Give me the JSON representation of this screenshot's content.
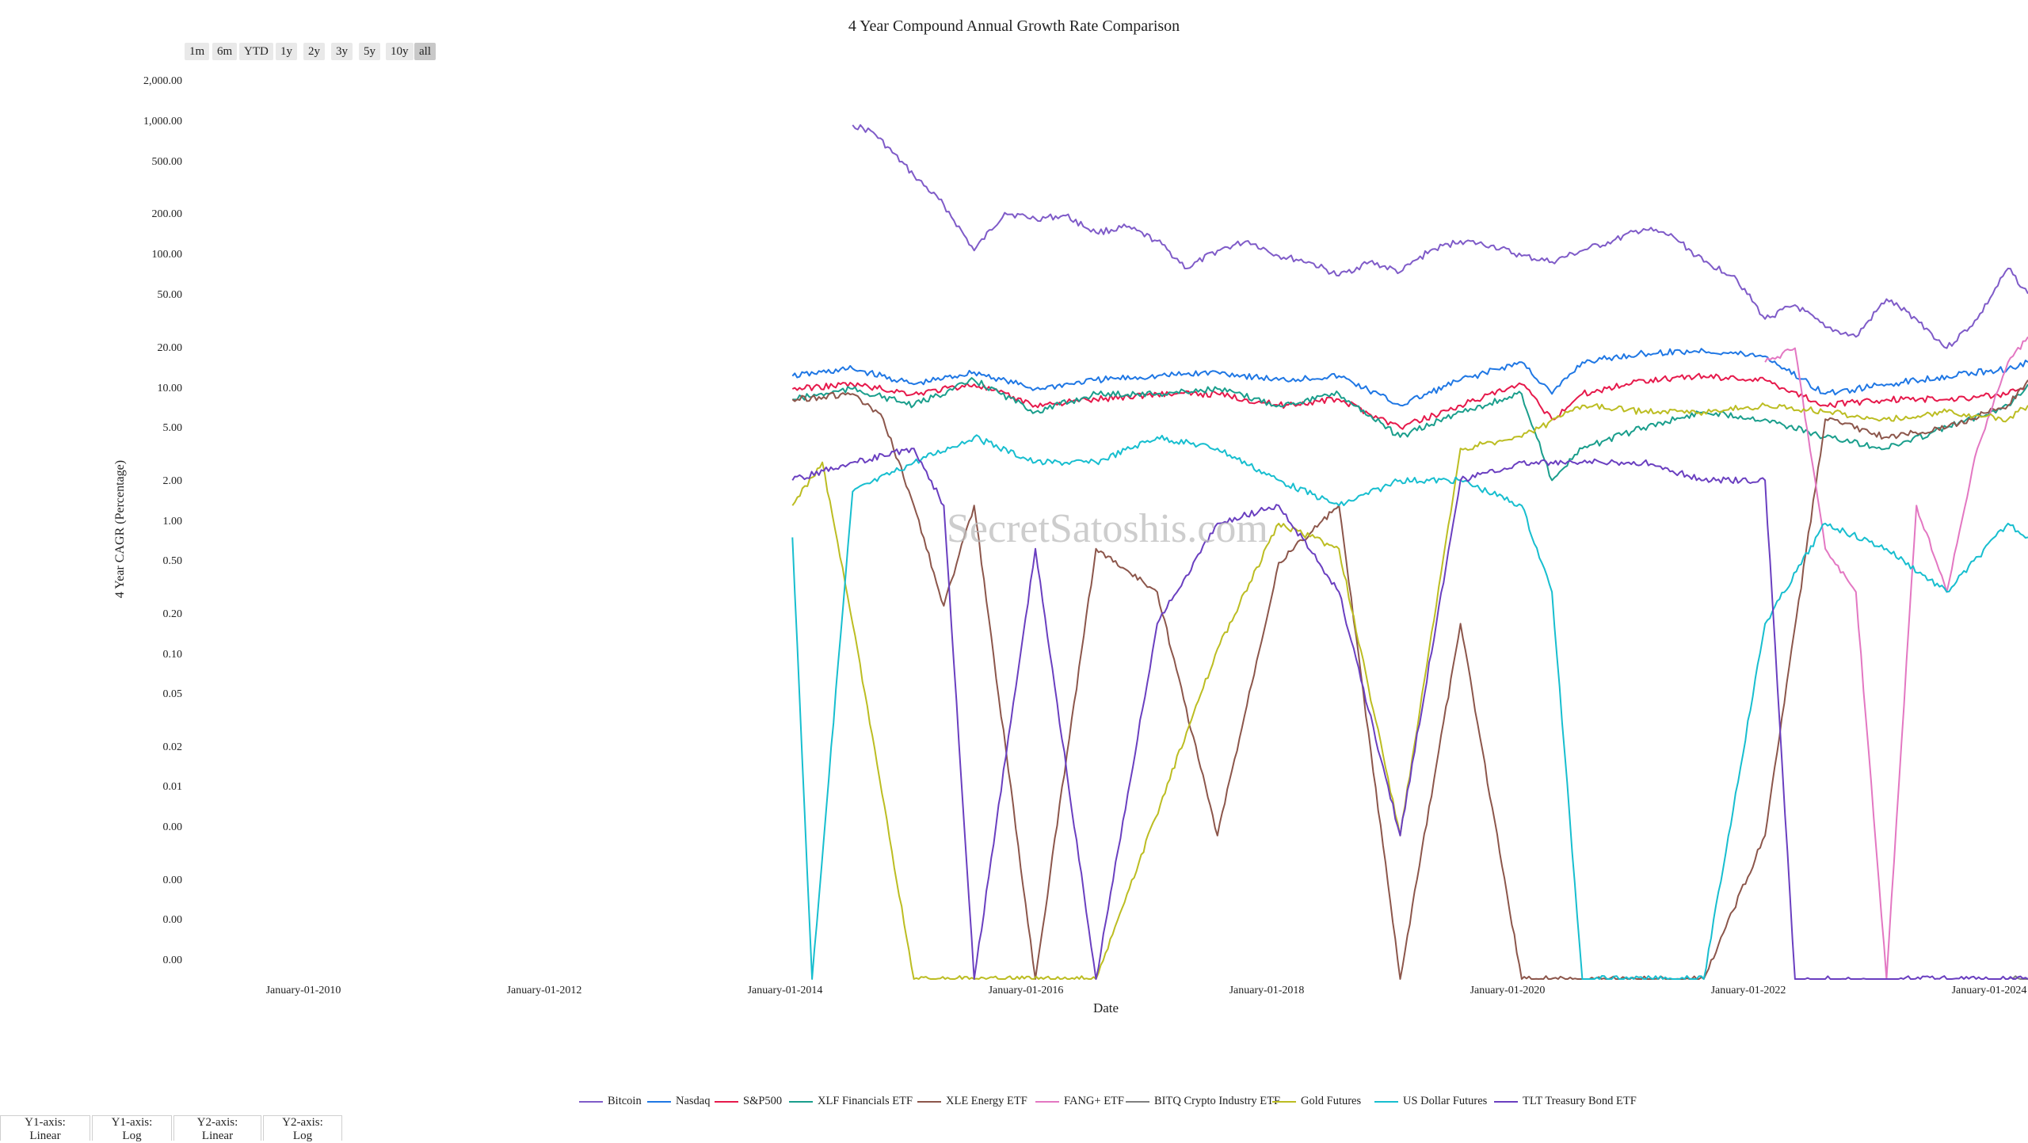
{
  "range_buttons": [
    "1m",
    "6m",
    "YTD",
    "1y",
    "2y",
    "3y",
    "5y",
    "10y",
    "all"
  ],
  "active_range": "all",
  "axis_toggles": [
    "Y1-axis: Linear",
    "Y1-axis: Log",
    "Y2-axis: Linear",
    "Y2-axis: Log"
  ],
  "watermark": "SecretSatoshis.com",
  "chart_data": {
    "type": "line",
    "title": "4 Year Compound Annual Growth Rate Comparison",
    "xlabel": "Date",
    "ylabel": "4 Year CAGR (Percentage)",
    "yscale": "log",
    "x_ticks": [
      "January-01-2010",
      "January-01-2012",
      "January-01-2014",
      "January-01-2016",
      "January-01-2018",
      "January-01-2020",
      "January-01-2022",
      "January-01-2024"
    ],
    "y_ticks": [
      "2,000.00",
      "1,000.00",
      "500.00",
      "200.00",
      "100.00",
      "50.00",
      "20.00",
      "10.00",
      "5.00",
      "2.00",
      "1.00",
      "0.50",
      "0.20",
      "0.10",
      "0.05",
      "0.02",
      "0.01",
      "0.00",
      "0.00",
      "0.00",
      "0.00"
    ],
    "xlim": [
      "2009-01-01",
      "2024-03-01"
    ],
    "grid": false,
    "legend_position": "bottom",
    "series": [
      {
        "name": "Bitcoin",
        "color": "#7f5bc8",
        "x": [
          "2014-07-01",
          "2014-09-01",
          "2015-01-01",
          "2015-04-01",
          "2015-07-01",
          "2015-10-01",
          "2016-01-01",
          "2016-04-01",
          "2016-07-01",
          "2016-10-01",
          "2017-01-01",
          "2017-04-01",
          "2017-07-01",
          "2017-10-01",
          "2018-01-01",
          "2018-04-01",
          "2018-07-01",
          "2018-10-01",
          "2019-01-01",
          "2019-04-01",
          "2019-07-01",
          "2019-10-01",
          "2020-01-01",
          "2020-04-01",
          "2020-07-01",
          "2020-10-01",
          "2021-01-01",
          "2021-04-01",
          "2021-07-01",
          "2021-10-01",
          "2022-01-01",
          "2022-04-01",
          "2022-07-01",
          "2022-10-01",
          "2023-01-01",
          "2023-04-01",
          "2023-07-01",
          "2023-10-01",
          "2024-01-01",
          "2024-03-01"
        ],
        "values": [
          900,
          800,
          400,
          250,
          120,
          220,
          200,
          210,
          160,
          175,
          140,
          90,
          120,
          140,
          110,
          100,
          80,
          100,
          85,
          120,
          140,
          130,
          110,
          100,
          120,
          140,
          170,
          150,
          100,
          80,
          40,
          50,
          35,
          30,
          55,
          40,
          25,
          40,
          90,
          60
        ]
      },
      {
        "name": "Nasdaq",
        "color": "#1f77e4",
        "x": [
          "2014-01-01",
          "2014-07-01",
          "2015-01-01",
          "2015-07-01",
          "2016-01-01",
          "2016-07-01",
          "2017-01-01",
          "2017-07-01",
          "2018-01-01",
          "2018-07-01",
          "2019-01-01",
          "2019-07-01",
          "2020-01-01",
          "2020-04-01",
          "2020-07-01",
          "2021-01-01",
          "2021-07-01",
          "2022-01-01",
          "2022-07-01",
          "2023-01-01",
          "2023-07-01",
          "2024-01-01",
          "2024-03-01"
        ],
        "values": [
          16,
          18,
          14,
          17,
          13,
          15,
          16,
          17,
          15,
          16,
          10,
          15,
          20,
          12,
          20,
          23,
          24,
          22,
          12,
          14,
          16,
          18,
          20
        ]
      },
      {
        "name": "S&P500",
        "color": "#e6194b",
        "x": [
          "2014-01-01",
          "2014-07-01",
          "2015-01-01",
          "2015-07-01",
          "2016-01-01",
          "2016-07-01",
          "2017-01-01",
          "2017-07-01",
          "2018-01-01",
          "2018-07-01",
          "2019-01-01",
          "2019-07-01",
          "2020-01-01",
          "2020-04-01",
          "2020-07-01",
          "2021-01-01",
          "2021-07-01",
          "2022-01-01",
          "2022-07-01",
          "2023-01-01",
          "2023-07-01",
          "2024-01-01",
          "2024-03-01"
        ],
        "values": [
          13,
          14,
          12,
          14,
          10,
          11,
          12,
          12,
          10,
          11,
          7,
          10,
          14,
          8,
          12,
          15,
          16,
          15,
          10,
          11,
          11,
          12,
          14
        ]
      },
      {
        "name": "XLF Financials ETF",
        "color": "#1a9e8c",
        "x": [
          "2014-01-01",
          "2014-07-01",
          "2015-01-01",
          "2015-07-01",
          "2016-01-01",
          "2016-07-01",
          "2017-01-01",
          "2017-07-01",
          "2018-01-01",
          "2018-07-01",
          "2019-01-01",
          "2019-07-01",
          "2020-01-01",
          "2020-04-01",
          "2020-07-01",
          "2021-01-01",
          "2021-07-01",
          "2022-01-01",
          "2022-07-01",
          "2023-01-01",
          "2023-07-01",
          "2024-01-01",
          "2024-03-01"
        ],
        "values": [
          11,
          13,
          10,
          15,
          9,
          12,
          12,
          13,
          10,
          12,
          6,
          9,
          12,
          3,
          5,
          7,
          9,
          8,
          6,
          5,
          7,
          10,
          14
        ]
      },
      {
        "name": "XLE Energy ETF",
        "color": "#8c564b",
        "x": [
          "2014-01-01",
          "2014-07-01",
          "2014-10-01",
          "2015-01-01",
          "2015-04-01",
          "2015-07-01",
          "2016-01-01",
          "2016-07-01",
          "2017-01-01",
          "2017-07-01",
          "2018-01-01",
          "2018-07-01",
          "2019-01-01",
          "2019-07-01",
          "2020-01-01",
          "2020-07-01",
          "2021-07-01",
          "2022-01-01",
          "2022-07-01",
          "2023-01-01",
          "2023-07-01",
          "2024-01-01",
          "2024-03-01"
        ],
        "values": [
          11,
          12,
          8,
          2,
          0.4,
          2,
          0.001,
          1,
          0.5,
          0.01,
          0.8,
          2,
          0.001,
          0.3,
          0.001,
          0.001,
          0.001,
          0.01,
          8,
          6,
          7,
          10,
          15
        ]
      },
      {
        "name": "FANG+ ETF",
        "color": "#e377c2",
        "x": [
          "2022-01-01",
          "2022-04-01",
          "2022-07-01",
          "2022-10-01",
          "2023-01-01",
          "2023-04-01",
          "2023-07-01",
          "2023-10-01",
          "2024-01-01",
          "2024-03-01"
        ],
        "values": [
          20,
          25,
          1,
          0.5,
          0.001,
          2,
          0.5,
          5,
          20,
          30
        ]
      },
      {
        "name": "BITQ Crypto Industry ETF",
        "color": "#7f7f7f",
        "x": [
          "2024-01-01",
          "2024-03-01"
        ],
        "values": [
          0.001,
          0.001
        ]
      },
      {
        "name": "Gold Futures",
        "color": "#bcbd22",
        "x": [
          "2014-01-01",
          "2014-04-01",
          "2014-07-01",
          "2015-01-01",
          "2015-07-01",
          "2016-07-01",
          "2017-07-01",
          "2018-01-01",
          "2018-07-01",
          "2019-01-01",
          "2019-07-01",
          "2020-01-01",
          "2020-07-01",
          "2021-01-01",
          "2021-07-01",
          "2022-01-01",
          "2022-07-01",
          "2023-01-01",
          "2023-07-01",
          "2024-01-01",
          "2024-03-01"
        ],
        "values": [
          2,
          4,
          0.3,
          0.001,
          0.001,
          0.001,
          0.2,
          1.5,
          1,
          0.01,
          5,
          6,
          10,
          9,
          9,
          10,
          9,
          8,
          9,
          8,
          10
        ]
      },
      {
        "name": "US Dollar Futures",
        "color": "#17becf",
        "x": [
          "2014-01-01",
          "2014-03-01",
          "2014-07-01",
          "2015-01-01",
          "2015-07-01",
          "2016-01-01",
          "2016-07-01",
          "2017-01-01",
          "2017-07-01",
          "2018-01-01",
          "2018-07-01",
          "2019-01-01",
          "2019-07-01",
          "2020-01-01",
          "2020-04-01",
          "2020-07-01",
          "2021-01-01",
          "2021-07-01",
          "2022-01-01",
          "2022-07-01",
          "2023-01-01",
          "2023-07-01",
          "2024-01-01",
          "2024-03-01"
        ],
        "values": [
          1.2,
          0.001,
          2.5,
          4,
          6,
          4,
          4,
          6,
          5,
          3,
          2,
          3,
          3,
          2,
          0.5,
          0.001,
          0.001,
          0.001,
          0.3,
          1.5,
          1,
          0.5,
          1.5,
          1.2
        ]
      },
      {
        "name": "TLT Treasury Bond ETF",
        "color": "#6a3fc0",
        "x": [
          "2014-01-01",
          "2014-07-01",
          "2015-01-01",
          "2015-04-01",
          "2015-07-01",
          "2016-01-01",
          "2016-07-01",
          "2017-01-01",
          "2017-07-01",
          "2018-01-01",
          "2018-07-01",
          "2019-01-01",
          "2019-07-01",
          "2020-01-01",
          "2020-07-01",
          "2021-01-01",
          "2021-07-01",
          "2022-01-01",
          "2022-04-01",
          "2022-07-01",
          "2022-10-01",
          "2023-01-01",
          "2023-07-01",
          "2024-01-01",
          "2024-03-01"
        ],
        "values": [
          3,
          4,
          5,
          2,
          0.001,
          1,
          0.001,
          0.3,
          1.5,
          2,
          0.5,
          0.01,
          3,
          4,
          4,
          4,
          3,
          3,
          0.001,
          0.001,
          0.001,
          0.001,
          0.001,
          0.001,
          0.001
        ]
      }
    ]
  }
}
